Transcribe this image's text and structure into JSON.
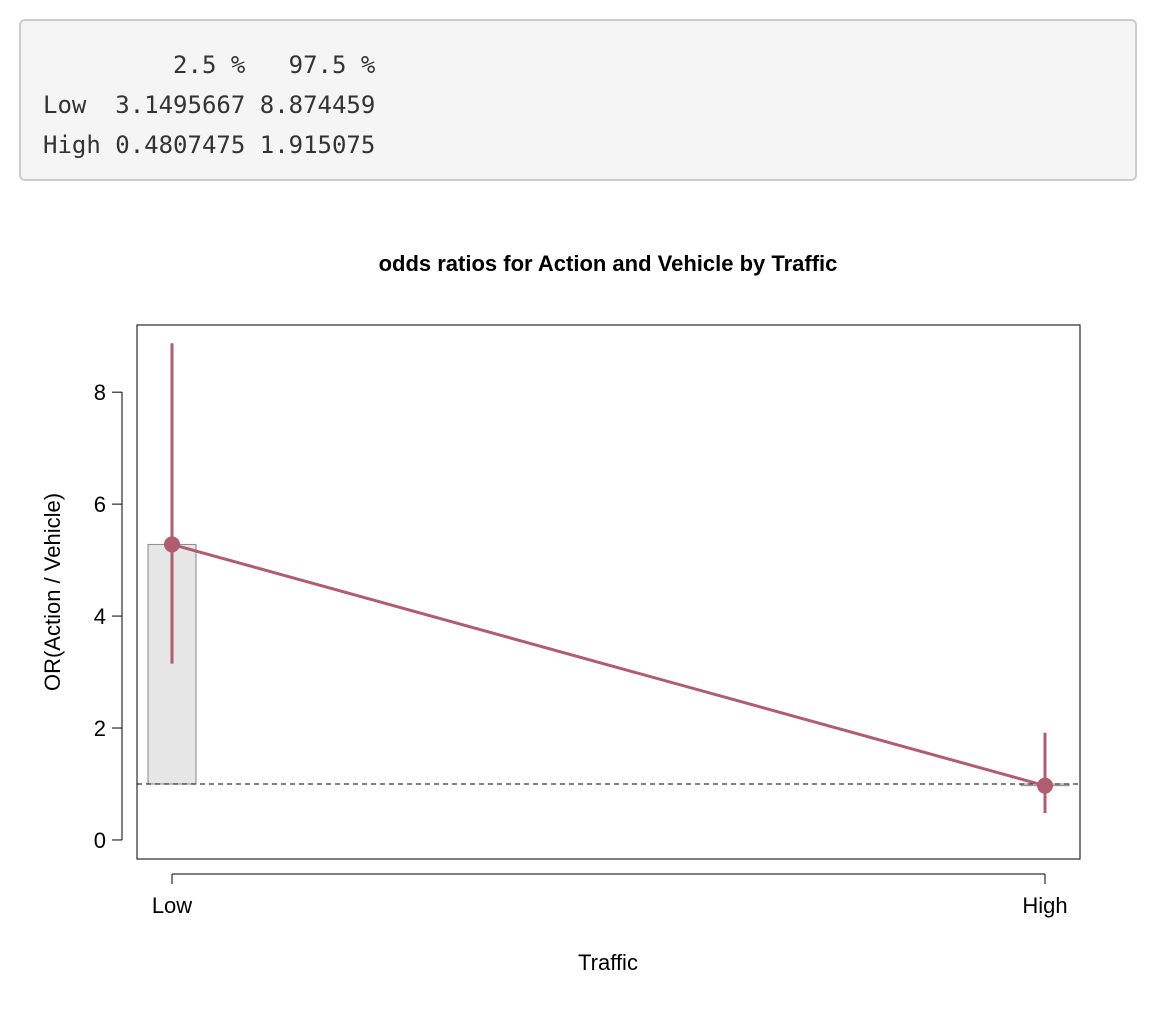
{
  "output": {
    "lines": [
      "         2.5 %   97.5 %",
      "Low  3.1495667 8.874459",
      "High 0.4807475 1.915075"
    ]
  },
  "chart_data": {
    "type": "line",
    "title": "odds ratios for Action and Vehicle by Traffic",
    "xlabel": "Traffic",
    "ylabel": "OR(Action / Vehicle)",
    "categories": [
      "Low",
      "High"
    ],
    "values": [
      5.28,
      0.97
    ],
    "ci_lower": [
      3.1495667,
      0.4807475
    ],
    "ci_upper": [
      8.874459,
      1.915075
    ],
    "ylim": [
      -0.34,
      9.2
    ],
    "yticks": [
      "0",
      "2",
      "4",
      "6",
      "8"
    ],
    "reference_line": 1,
    "colors": {
      "series": "#b05c71",
      "bar_fill": "#e6e6e6",
      "bar_stroke": "#888888"
    }
  }
}
